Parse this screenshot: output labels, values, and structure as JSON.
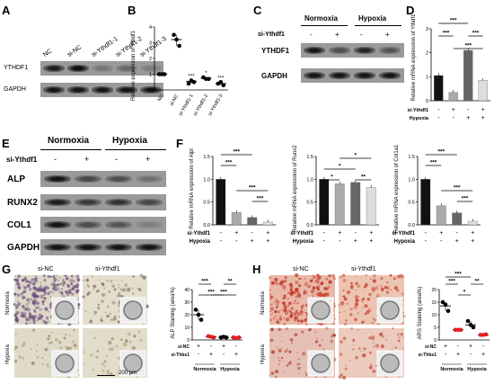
{
  "panels": {
    "A": {
      "letter": "A",
      "lanes": [
        "NC",
        "si-NC",
        "si-Ythdf1-1",
        "si-Ythdf1-2",
        "si-Ythdf1-3"
      ],
      "rows": [
        "YTHDF1",
        "GAPDH"
      ]
    },
    "B": {
      "letter": "B",
      "chart_type": "scatter",
      "ylabel": "Relative expression of Ythdf1",
      "ylim": [
        0,
        4
      ],
      "ticks": [
        "0",
        "1",
        "2",
        "3",
        "4"
      ],
      "categories": [
        "NC",
        "si-NC",
        "si-Ythdf1-1",
        "si-Ythdf1-2",
        "si-Ythdf1-3"
      ],
      "means": [
        1.0,
        3.2,
        0.55,
        0.75,
        0.4
      ],
      "points": [
        [
          1.0,
          1.0,
          1.0
        ],
        [
          3.5,
          3.2,
          2.8
        ],
        [
          0.4,
          0.6,
          0.5
        ],
        [
          0.8,
          0.7,
          0.7
        ],
        [
          0.4,
          0.5,
          0.3
        ]
      ],
      "sig": [
        "",
        "",
        "***",
        "*",
        "***"
      ]
    },
    "C": {
      "letter": "C",
      "conditions": [
        "Normoxia",
        "Hypoxia"
      ],
      "treatment_label": "si-Ythdf1",
      "signs": [
        "-",
        "+",
        "-",
        "+"
      ],
      "rows": [
        "YTHDF1",
        "GAPDH"
      ]
    },
    "D": {
      "letter": "D",
      "chart_type": "bar",
      "ylabel": "Relative mRNA expression of Ythdf1",
      "ylim": [
        0,
        3
      ],
      "ticks": [
        "0",
        "1",
        "2",
        "3"
      ],
      "values": [
        1.05,
        0.35,
        2.1,
        0.85
      ],
      "row_labels": [
        "si-Ythdf1",
        "Hypoxia"
      ],
      "signs": [
        [
          "-",
          "+",
          "-",
          "+"
        ],
        [
          "-",
          "-",
          "+",
          "+"
        ]
      ],
      "sig": [
        "***",
        "***",
        "***",
        "***"
      ]
    },
    "E": {
      "letter": "E",
      "conditions": [
        "Normoxia",
        "Hypoxia"
      ],
      "treatment_label": "si-Ythdf1",
      "signs": [
        "-",
        "+",
        "-",
        "+"
      ],
      "rows": [
        "ALP",
        "RUNX2",
        "COL1",
        "GAPDH"
      ]
    },
    "F": {
      "letter": "F",
      "row_labels": [
        "si-Ythdf1",
        "Hypoxia"
      ],
      "signs": [
        [
          "-",
          "+",
          "-",
          "+"
        ],
        [
          "-",
          "-",
          "+",
          "+"
        ]
      ],
      "ticks": [
        "0.0",
        "0.5",
        "1.0",
        "1.5"
      ],
      "charts": [
        {
          "ylabel": "Relative mRNA expression of Alpl",
          "values": [
            1.0,
            0.27,
            0.16,
            0.06
          ],
          "ylim": [
            0,
            1.5
          ],
          "sig": [
            "***",
            "***",
            "***",
            "***"
          ]
        },
        {
          "ylabel": "Relative mRNA expression of Runx2",
          "values": [
            1.0,
            0.9,
            0.93,
            0.82
          ],
          "ylim": [
            0,
            1.5
          ],
          "sig": [
            "*",
            "*",
            "*",
            "**"
          ]
        },
        {
          "ylabel": "Relative mRNA expression of Col1a1",
          "values": [
            1.0,
            0.42,
            0.26,
            0.08
          ],
          "ylim": [
            0,
            1.5
          ],
          "sig": [
            "***",
            "***",
            "***",
            "***"
          ]
        }
      ]
    },
    "G": {
      "letter": "G",
      "col_labels": [
        "si-NC",
        "si-Ythdf1"
      ],
      "row_labels": [
        "Normoxia",
        "Hypoxia"
      ],
      "scalebar": "200 μm",
      "chart": {
        "ylabel": "ALP Staining (area%)",
        "ylim": [
          0,
          40
        ],
        "ticks": [
          "0",
          "10",
          "20",
          "30",
          "40"
        ],
        "means": [
          20,
          2.5,
          2,
          2
        ],
        "points": [
          [
            24,
            20,
            16
          ],
          [
            3,
            2.5,
            2
          ],
          [
            2,
            2.5,
            2
          ],
          [
            2,
            1.5,
            2
          ]
        ],
        "row_labels": [
          "si-NC",
          "si-Thbs1"
        ],
        "signs": [
          [
            "+",
            "-",
            "+",
            "-"
          ],
          [
            "-",
            "+",
            "-",
            "+"
          ]
        ],
        "groups": [
          "Normoxia",
          "Hypoxia"
        ],
        "sig": [
          "***",
          "***",
          "***",
          "**"
        ]
      }
    },
    "H": {
      "letter": "H",
      "col_labels": [
        "si-NC",
        "si-Ythdf1"
      ],
      "row_labels": [
        "Normoxia",
        "Hypoxia"
      ],
      "chart": {
        "ylabel": "ARS Staining (area%)",
        "ylim": [
          0,
          20
        ],
        "ticks": [
          "0",
          "5",
          "10",
          "15",
          "20"
        ],
        "means": [
          13.5,
          4,
          6,
          2
        ],
        "points": [
          [
            15,
            14,
            11.5
          ],
          [
            4,
            4,
            4
          ],
          [
            7.5,
            6,
            5
          ],
          [
            2,
            2,
            2.2
          ]
        ],
        "row_labels": [
          "si-NC",
          "si-Thbs1"
        ],
        "signs": [
          [
            "+",
            "-",
            "+",
            "-"
          ],
          [
            "-",
            "+",
            "-",
            "+"
          ]
        ],
        "groups": [
          "Normoxia",
          "Hypoxia"
        ],
        "sig": [
          "***",
          "***",
          "*",
          "**"
        ]
      }
    }
  },
  "chart_data": [
    {
      "type": "scatter",
      "ylabel": "Relative expression of Ythdf1",
      "categories": [
        "NC",
        "si-NC",
        "si-Ythdf1-1",
        "si-Ythdf1-2",
        "si-Ythdf1-3"
      ],
      "values": [
        1.0,
        3.2,
        0.55,
        0.75,
        0.4
      ],
      "ylim": [
        0,
        4
      ]
    },
    {
      "type": "bar",
      "ylabel": "Relative mRNA expression of Ythdf1",
      "values": [
        1.05,
        0.35,
        2.1,
        0.85
      ],
      "ylim": [
        0,
        3
      ]
    },
    {
      "type": "bar",
      "ylabel": "Relative mRNA expression of Alpl",
      "values": [
        1.0,
        0.27,
        0.16,
        0.06
      ],
      "ylim": [
        0,
        1.5
      ]
    },
    {
      "type": "bar",
      "ylabel": "Relative mRNA expression of Runx2",
      "values": [
        1.0,
        0.9,
        0.93,
        0.82
      ],
      "ylim": [
        0,
        1.5
      ]
    },
    {
      "type": "bar",
      "ylabel": "Relative mRNA expression of Col1a1",
      "values": [
        1.0,
        0.42,
        0.26,
        0.08
      ],
      "ylim": [
        0,
        1.5
      ]
    },
    {
      "type": "scatter",
      "ylabel": "ALP Staining (area%)",
      "values": [
        20,
        2.5,
        2,
        2
      ],
      "ylim": [
        0,
        40
      ]
    },
    {
      "type": "scatter",
      "ylabel": "ARS Staining (area%)",
      "values": [
        13.5,
        4,
        6,
        2
      ],
      "ylim": [
        0,
        20
      ]
    }
  ]
}
